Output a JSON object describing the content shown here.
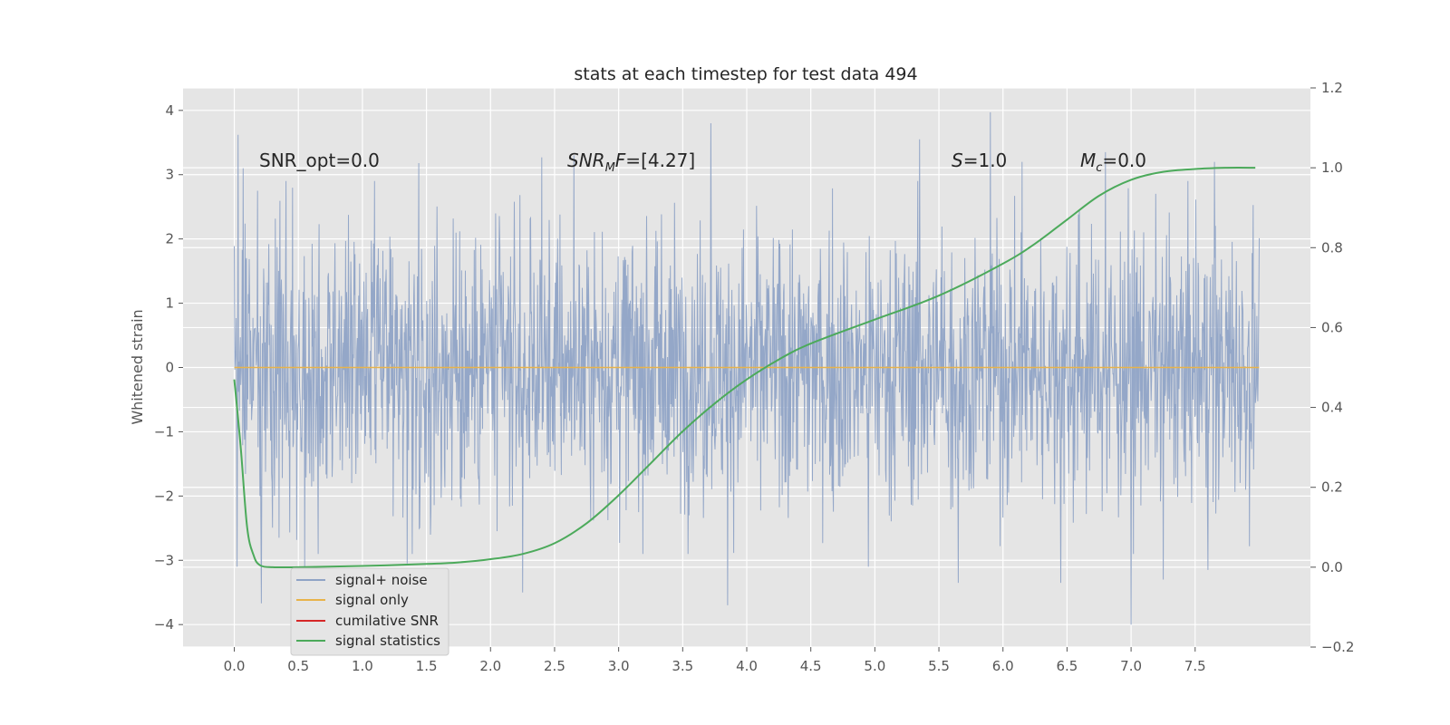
{
  "chart_data": {
    "type": "line",
    "title": "stats at each timestep for test data 494",
    "xlabel": "",
    "ylabel": "Whitened strain",
    "y2label": "",
    "xlim": [
      -0.4,
      8.4
    ],
    "ylim": [
      -4.35,
      4.35
    ],
    "y2lim": [
      -0.2,
      1.2
    ],
    "x_ticks": [
      0.0,
      0.5,
      1.0,
      1.5,
      2.0,
      2.5,
      3.0,
      3.5,
      4.0,
      4.5,
      5.0,
      5.5,
      6.0,
      6.5,
      7.0,
      7.5
    ],
    "x_tick_labels": [
      "0.0",
      "0.5",
      "1.0",
      "1.5",
      "2.0",
      "2.5",
      "3.0",
      "3.5",
      "4.0",
      "4.5",
      "5.0",
      "5.5",
      "6.0",
      "6.5",
      "7.0",
      "7.5"
    ],
    "y_ticks": [
      4,
      3,
      2,
      1,
      0,
      -1,
      -2,
      -3,
      -4
    ],
    "y_tick_labels": [
      "4",
      "3",
      "2",
      "1",
      "0",
      "−1",
      "−2",
      "−3",
      "−4"
    ],
    "y2_ticks": [
      1.2,
      1.0,
      0.8,
      0.6,
      0.4,
      0.2,
      0.0,
      -0.2
    ],
    "y2_tick_labels": [
      "1.2",
      "1.0",
      "0.8",
      "0.6",
      "0.4",
      "0.2",
      "0.0",
      "−0.2"
    ],
    "grid": true,
    "legend_position": "bottom-left",
    "annotations": {
      "snr_opt": "SNR_opt=0.0",
      "snr_mf": "[4.27]",
      "s_value": "1.0",
      "mc_value": "0.0"
    },
    "series": [
      {
        "name": "signal+ noise",
        "color": "#8fa3c6",
        "axis": "left",
        "x": [
          0.0,
          8.0
        ],
        "envelope_upper": [
          2.0,
          2.0
        ],
        "envelope_lower": [
          -2.0,
          -2.0
        ],
        "peaks": [
          {
            "x": 0.03,
            "y": 3.62
          },
          {
            "x": 0.07,
            "y": 3.1
          },
          {
            "x": 0.18,
            "y": 2.75
          },
          {
            "x": 1.44,
            "y": 3.18
          },
          {
            "x": 2.4,
            "y": 3.27
          },
          {
            "x": 2.65,
            "y": 3.3
          },
          {
            "x": 3.72,
            "y": 3.8
          },
          {
            "x": 5.35,
            "y": 3.55
          },
          {
            "x": 5.9,
            "y": 3.97
          },
          {
            "x": 6.15,
            "y": 3.2
          },
          {
            "x": 6.8,
            "y": 3.35
          },
          {
            "x": 7.65,
            "y": 3.2
          }
        ],
        "troughs": [
          {
            "x": 0.02,
            "y": -3.1
          },
          {
            "x": 0.21,
            "y": -3.67
          },
          {
            "x": 0.35,
            "y": -2.65
          },
          {
            "x": 0.55,
            "y": -3.1
          },
          {
            "x": 1.35,
            "y": -3.05
          },
          {
            "x": 2.25,
            "y": -3.5
          },
          {
            "x": 3.85,
            "y": -3.7
          },
          {
            "x": 4.95,
            "y": -3.1
          },
          {
            "x": 5.65,
            "y": -3.35
          },
          {
            "x": 6.45,
            "y": -3.35
          },
          {
            "x": 7.0,
            "y": -4.0
          },
          {
            "x": 7.25,
            "y": -3.3
          },
          {
            "x": 7.6,
            "y": -3.15
          }
        ]
      },
      {
        "name": "signal only",
        "color": "#e8b34a",
        "axis": "left",
        "x": [
          0.0,
          8.0
        ],
        "y": [
          0.0,
          0.0
        ]
      },
      {
        "name": "cumilative SNR",
        "color": "#d62728",
        "axis": "right",
        "x": [],
        "y": []
      },
      {
        "name": "signal statistics",
        "color": "#4caa5b",
        "axis": "right",
        "x": [
          0.0,
          0.05,
          0.1,
          0.15,
          0.2,
          0.3,
          0.5,
          1.0,
          1.5,
          1.75,
          2.0,
          2.25,
          2.5,
          2.75,
          3.0,
          3.25,
          3.5,
          3.75,
          4.0,
          4.25,
          4.5,
          5.0,
          5.5,
          6.0,
          6.25,
          6.5,
          6.75,
          7.0,
          7.25,
          7.5,
          7.75,
          7.97
        ],
        "y": [
          0.47,
          0.3,
          0.1,
          0.03,
          0.005,
          0.0,
          0.0,
          0.003,
          0.008,
          0.012,
          0.02,
          0.033,
          0.06,
          0.11,
          0.18,
          0.26,
          0.34,
          0.41,
          0.47,
          0.52,
          0.56,
          0.62,
          0.68,
          0.76,
          0.81,
          0.87,
          0.93,
          0.97,
          0.99,
          0.997,
          1.0,
          1.0
        ]
      }
    ]
  }
}
